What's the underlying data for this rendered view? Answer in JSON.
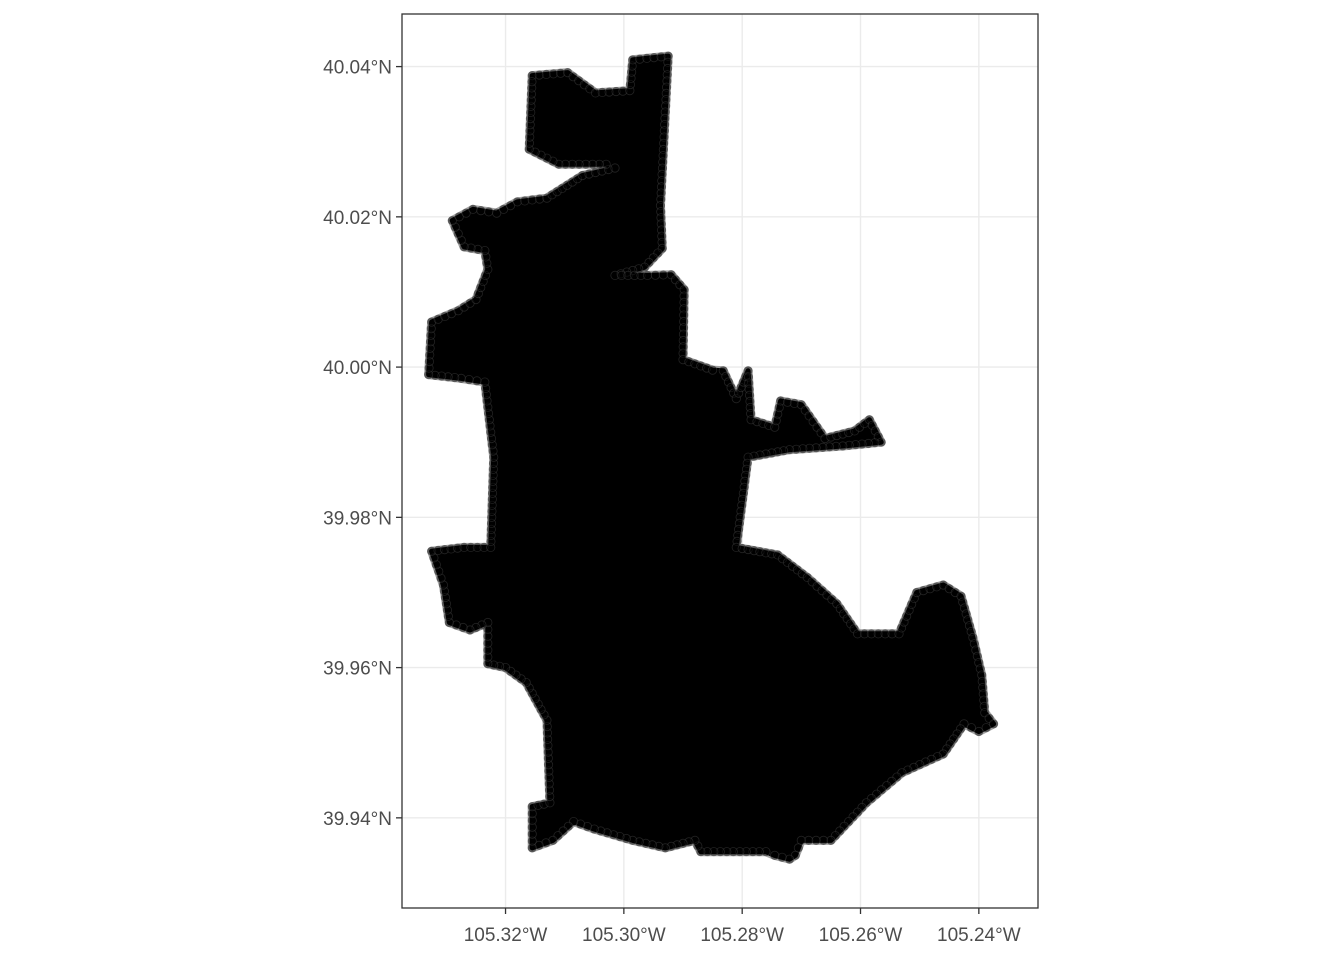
{
  "map": {
    "type": "scatter",
    "title": "",
    "xlabel": "",
    "ylabel": "",
    "xlim": [
      -105.3375,
      -105.23
    ],
    "ylim": [
      39.928,
      40.047
    ],
    "grid": true,
    "point_color": "#000000",
    "x_ticks": [
      {
        "value": -105.32,
        "label": "105.32°W"
      },
      {
        "value": -105.3,
        "label": "105.30°W"
      },
      {
        "value": -105.28,
        "label": "105.28°W"
      },
      {
        "value": -105.26,
        "label": "105.26°W"
      },
      {
        "value": -105.24,
        "label": "105.24°W"
      }
    ],
    "y_ticks": [
      {
        "value": 39.94,
        "label": "39.94°N"
      },
      {
        "value": 39.96,
        "label": "39.96°N"
      },
      {
        "value": 39.98,
        "label": "39.98°N"
      },
      {
        "value": 40.0,
        "label": "40.00°N"
      },
      {
        "value": 40.02,
        "label": "40.02°N"
      },
      {
        "value": 40.04,
        "label": "40.04°N"
      }
    ],
    "point_cloud_outline": [
      [
        -105.3155,
        40.0388
      ],
      [
        -105.3095,
        40.0392
      ],
      [
        -105.3048,
        40.0365
      ],
      [
        -105.299,
        40.0368
      ],
      [
        -105.2985,
        40.0409
      ],
      [
        -105.2925,
        40.0414
      ],
      [
        -105.2938,
        40.0215
      ],
      [
        -105.2935,
        40.0158
      ],
      [
        -105.2965,
        40.0133
      ],
      [
        -105.3015,
        40.0122
      ],
      [
        -105.296,
        40.0122
      ],
      [
        -105.292,
        40.0123
      ],
      [
        -105.2898,
        40.0103
      ],
      [
        -105.29,
        40.001
      ],
      [
        -105.285,
        39.9996
      ],
      [
        -105.2832,
        39.9995
      ],
      [
        -105.281,
        39.9958
      ],
      [
        -105.279,
        39.9995
      ],
      [
        -105.2785,
        39.993
      ],
      [
        -105.2745,
        39.992
      ],
      [
        -105.2735,
        39.9955
      ],
      [
        -105.27,
        39.995
      ],
      [
        -105.266,
        39.9905
      ],
      [
        -105.261,
        39.9915
      ],
      [
        -105.2585,
        39.993
      ],
      [
        -105.2565,
        39.99
      ],
      [
        -105.263,
        39.9895
      ],
      [
        -105.272,
        39.989
      ],
      [
        -105.279,
        39.988
      ],
      [
        -105.281,
        39.976
      ],
      [
        -105.274,
        39.975
      ],
      [
        -105.269,
        39.972
      ],
      [
        -105.264,
        39.9685
      ],
      [
        -105.2605,
        39.9645
      ],
      [
        -105.2535,
        39.9645
      ],
      [
        -105.2505,
        39.97
      ],
      [
        -105.246,
        39.971
      ],
      [
        -105.243,
        39.9695
      ],
      [
        -105.241,
        39.964
      ],
      [
        -105.2395,
        39.959
      ],
      [
        -105.239,
        39.954
      ],
      [
        -105.2375,
        39.9525
      ],
      [
        -105.24,
        39.9515
      ],
      [
        -105.2425,
        39.9525
      ],
      [
        -105.246,
        39.9485
      ],
      [
        -105.253,
        39.946
      ],
      [
        -105.259,
        39.942
      ],
      [
        -105.262,
        39.9395
      ],
      [
        -105.265,
        39.937
      ],
      [
        -105.27,
        39.937
      ],
      [
        -105.271,
        39.935
      ],
      [
        -105.272,
        39.9345
      ],
      [
        -105.2745,
        39.935
      ],
      [
        -105.276,
        39.9355
      ],
      [
        -105.287,
        39.9355
      ],
      [
        -105.288,
        39.937
      ],
      [
        -105.293,
        39.936
      ],
      [
        -105.2985,
        39.937
      ],
      [
        -105.305,
        39.9385
      ],
      [
        -105.3085,
        39.9395
      ],
      [
        -105.312,
        39.937
      ],
      [
        -105.3155,
        39.936
      ],
      [
        -105.3155,
        39.9415
      ],
      [
        -105.3125,
        39.942
      ],
      [
        -105.313,
        39.953
      ],
      [
        -105.3165,
        39.958
      ],
      [
        -105.32,
        39.96
      ],
      [
        -105.323,
        39.9605
      ],
      [
        -105.323,
        39.966
      ],
      [
        -105.326,
        39.965
      ],
      [
        -105.3295,
        39.966
      ],
      [
        -105.3305,
        39.971
      ],
      [
        -105.3325,
        39.9755
      ],
      [
        -105.327,
        39.976
      ],
      [
        -105.3225,
        39.976
      ],
      [
        -105.322,
        39.988
      ],
      [
        -105.3235,
        39.998
      ],
      [
        -105.3275,
        39.9985
      ],
      [
        -105.333,
        39.999
      ],
      [
        -105.3325,
        40.006
      ],
      [
        -105.328,
        40.0075
      ],
      [
        -105.325,
        40.009
      ],
      [
        -105.323,
        40.013
      ],
      [
        -105.3235,
        40.0155
      ],
      [
        -105.327,
        40.016
      ],
      [
        -105.329,
        40.0195
      ],
      [
        -105.3255,
        40.021
      ],
      [
        -105.3215,
        40.0205
      ],
      [
        -105.318,
        40.022
      ],
      [
        -105.313,
        40.0225
      ],
      [
        -105.307,
        40.0255
      ],
      [
        -105.3015,
        40.0265
      ],
      [
        -105.303,
        40.027
      ],
      [
        -105.311,
        40.027
      ],
      [
        -105.316,
        40.029
      ]
    ]
  }
}
